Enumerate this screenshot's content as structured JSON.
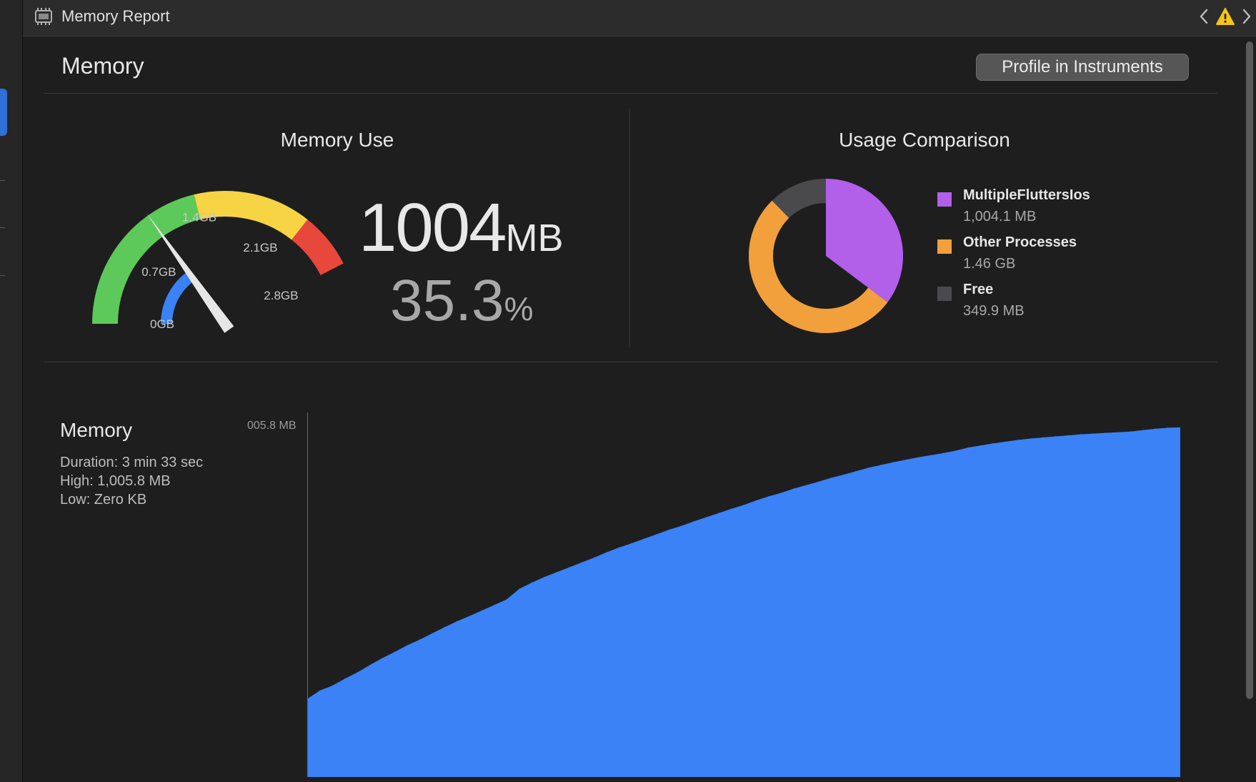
{
  "window": {
    "title": "Memory Report"
  },
  "header": {
    "title": "Memory",
    "profile_button": "Profile in Instruments"
  },
  "memory_use": {
    "title": "Memory Use",
    "value": "1004",
    "value_unit": "MB",
    "percent": "35.3",
    "percent_unit": "%",
    "gauge": {
      "tick_labels": [
        "0GB",
        "0.7GB",
        "1.4GB",
        "2.1GB",
        "2.8GB"
      ],
      "min_gb": 0,
      "max_gb": 2.8,
      "needle_gb": 1.0,
      "app_arc_gb": 1.0,
      "zones": [
        {
          "name": "green",
          "from_gb": 0,
          "to_gb": 1.4,
          "color": "#5dc95a"
        },
        {
          "name": "yellow",
          "from_gb": 1.4,
          "to_gb": 2.35,
          "color": "#f6d443"
        },
        {
          "name": "red",
          "from_gb": 2.35,
          "to_gb": 2.8,
          "color": "#e8473c"
        }
      ],
      "app_color": "#3a82f6"
    }
  },
  "usage_comparison": {
    "title": "Usage Comparison",
    "items": [
      {
        "name": "MultipleFluttersIos",
        "value": "1,004.1 MB",
        "color": "#b25fea",
        "mb": 1004.1
      },
      {
        "name": "Other Processes",
        "value": "1.46 GB",
        "color": "#f2a03b",
        "mb": 1495
      },
      {
        "name": "Free",
        "value": "349.9 MB",
        "color": "#4a4a4c",
        "mb": 349.9
      }
    ]
  },
  "memory_chart": {
    "title": "Memory",
    "stats": [
      "Duration: 3 min 33 sec",
      "High: 1,005.8 MB",
      "Low: Zero KB"
    ]
  },
  "chart_data": {
    "type": "area",
    "title": "Memory",
    "ylabel": "",
    "y_max_label": "005.8 MB",
    "ylim": [
      0,
      1005.8
    ],
    "color": "#3a82f6",
    "values": [
      224,
      248,
      262,
      282,
      300,
      321,
      341,
      359,
      378,
      394,
      412,
      430,
      447,
      462,
      478,
      494,
      510,
      540,
      558,
      574,
      588,
      602,
      616,
      630,
      645,
      659,
      671,
      684,
      697,
      710,
      721,
      734,
      746,
      758,
      770,
      781,
      794,
      806,
      816,
      828,
      838,
      848,
      859,
      868,
      878,
      888,
      896,
      904,
      911,
      918,
      924,
      930,
      937,
      946,
      952,
      958,
      963,
      968,
      972,
      975,
      978,
      981,
      984,
      986,
      988,
      990,
      992,
      996,
      1000,
      1003,
      1004
    ]
  }
}
